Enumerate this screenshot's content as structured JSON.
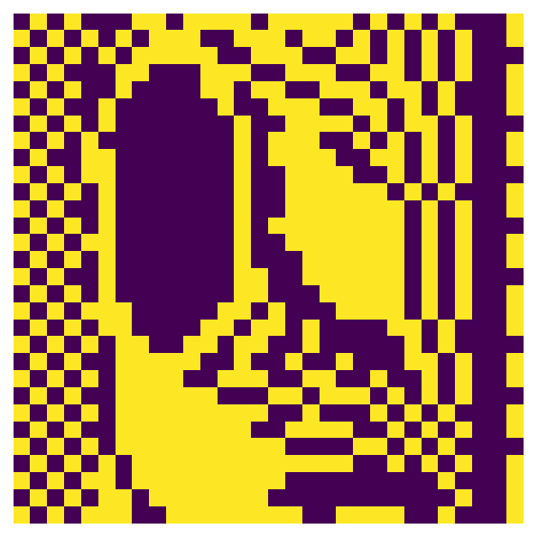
{
  "chart_data": {
    "type": "heatmap",
    "tick_labels": false,
    "grid": false,
    "colors": [
      "#440154",
      "#fde725"
    ],
    "cells": [
      [
        0,
        1,
        0,
        1,
        0,
        0,
        0,
        1,
        1,
        0,
        1,
        1,
        1,
        1,
        0,
        1,
        1,
        1,
        1,
        1,
        0,
        1,
        0,
        1,
        0,
        1,
        0,
        0,
        0,
        1
      ],
      [
        1,
        0,
        1,
        0,
        1,
        0,
        1,
        0,
        1,
        1,
        1,
        0,
        0,
        1,
        1,
        1,
        0,
        1,
        1,
        0,
        1,
        0,
        1,
        0,
        1,
        0,
        1,
        0,
        0,
        1
      ],
      [
        0,
        1,
        0,
        1,
        0,
        1,
        0,
        1,
        1,
        1,
        1,
        1,
        0,
        0,
        1,
        1,
        1,
        0,
        0,
        1,
        1,
        0,
        1,
        0,
        1,
        0,
        1,
        0,
        0,
        0
      ],
      [
        1,
        0,
        1,
        0,
        0,
        0,
        1,
        1,
        0,
        0,
        0,
        1,
        1,
        1,
        0,
        0,
        1,
        1,
        1,
        0,
        0,
        1,
        1,
        0,
        1,
        0,
        1,
        0,
        0,
        1
      ],
      [
        0,
        1,
        0,
        1,
        0,
        0,
        1,
        0,
        0,
        0,
        0,
        1,
        1,
        0,
        1,
        1,
        0,
        0,
        1,
        1,
        1,
        0,
        1,
        1,
        0,
        1,
        0,
        0,
        0,
        1
      ],
      [
        1,
        0,
        1,
        0,
        0,
        1,
        0,
        0,
        0,
        0,
        0,
        0,
        1,
        0,
        0,
        1,
        1,
        1,
        0,
        0,
        1,
        1,
        0,
        1,
        0,
        1,
        0,
        0,
        0,
        1
      ],
      [
        0,
        1,
        0,
        1,
        0,
        1,
        0,
        0,
        0,
        0,
        0,
        0,
        0,
        1,
        0,
        0,
        1,
        1,
        1,
        1,
        0,
        1,
        0,
        1,
        1,
        0,
        1,
        0,
        0,
        0
      ],
      [
        1,
        0,
        1,
        0,
        1,
        0,
        0,
        0,
        0,
        0,
        0,
        0,
        0,
        1,
        0,
        1,
        1,
        1,
        0,
        0,
        1,
        0,
        1,
        0,
        1,
        0,
        1,
        0,
        0,
        1
      ],
      [
        0,
        1,
        0,
        0,
        1,
        1,
        0,
        0,
        0,
        0,
        0,
        0,
        0,
        1,
        0,
        1,
        1,
        1,
        1,
        0,
        0,
        1,
        1,
        0,
        1,
        0,
        1,
        0,
        0,
        1
      ],
      [
        1,
        0,
        1,
        0,
        1,
        1,
        0,
        0,
        0,
        0,
        0,
        0,
        0,
        1,
        0,
        0,
        1,
        1,
        1,
        1,
        0,
        0,
        1,
        0,
        1,
        0,
        1,
        0,
        0,
        0
      ],
      [
        0,
        1,
        0,
        1,
        0,
        1,
        0,
        0,
        0,
        0,
        0,
        0,
        0,
        1,
        0,
        0,
        1,
        1,
        1,
        1,
        1,
        1,
        0,
        1,
        0,
        1,
        0,
        0,
        0,
        1
      ],
      [
        1,
        0,
        1,
        0,
        0,
        1,
        0,
        0,
        0,
        0,
        0,
        0,
        0,
        1,
        0,
        0,
        1,
        1,
        1,
        1,
        1,
        1,
        1,
        0,
        1,
        0,
        1,
        0,
        0,
        1
      ],
      [
        0,
        1,
        0,
        1,
        0,
        1,
        0,
        0,
        0,
        0,
        0,
        0,
        0,
        1,
        0,
        1,
        1,
        1,
        1,
        1,
        1,
        1,
        1,
        0,
        1,
        0,
        1,
        0,
        0,
        0
      ],
      [
        1,
        0,
        1,
        0,
        1,
        1,
        0,
        0,
        0,
        0,
        0,
        0,
        0,
        1,
        0,
        0,
        1,
        1,
        1,
        1,
        1,
        1,
        1,
        0,
        1,
        0,
        1,
        0,
        0,
        1
      ],
      [
        0,
        1,
        0,
        1,
        0,
        1,
        0,
        0,
        0,
        0,
        0,
        0,
        0,
        1,
        0,
        0,
        0,
        1,
        1,
        1,
        1,
        1,
        1,
        0,
        1,
        0,
        1,
        0,
        0,
        1
      ],
      [
        1,
        0,
        1,
        0,
        0,
        1,
        0,
        0,
        0,
        0,
        0,
        0,
        0,
        1,
        1,
        0,
        0,
        1,
        1,
        1,
        1,
        1,
        1,
        0,
        1,
        0,
        1,
        0,
        0,
        0
      ],
      [
        0,
        1,
        0,
        1,
        0,
        1,
        0,
        0,
        0,
        0,
        0,
        0,
        0,
        1,
        1,
        0,
        0,
        0,
        1,
        1,
        1,
        1,
        1,
        0,
        1,
        0,
        1,
        0,
        0,
        1
      ],
      [
        1,
        0,
        1,
        0,
        1,
        1,
        1,
        0,
        0,
        0,
        0,
        0,
        1,
        1,
        0,
        1,
        0,
        0,
        0,
        1,
        1,
        1,
        1,
        0,
        1,
        0,
        1,
        0,
        0,
        1
      ],
      [
        0,
        1,
        0,
        1,
        0,
        1,
        1,
        0,
        0,
        0,
        0,
        1,
        1,
        0,
        1,
        1,
        0,
        1,
        0,
        0,
        0,
        0,
        1,
        1,
        0,
        1,
        0,
        0,
        0,
        1
      ],
      [
        1,
        0,
        1,
        0,
        1,
        0,
        1,
        1,
        0,
        0,
        1,
        1,
        0,
        1,
        1,
        0,
        0,
        1,
        0,
        0,
        0,
        0,
        0,
        1,
        0,
        1,
        0,
        0,
        0,
        0
      ],
      [
        0,
        1,
        0,
        1,
        0,
        0,
        1,
        1,
        1,
        1,
        1,
        0,
        0,
        1,
        0,
        0,
        1,
        0,
        0,
        1,
        0,
        0,
        0,
        1,
        1,
        0,
        1,
        0,
        0,
        1
      ],
      [
        1,
        0,
        1,
        0,
        1,
        0,
        1,
        1,
        1,
        1,
        0,
        0,
        1,
        1,
        1,
        0,
        0,
        1,
        1,
        0,
        0,
        1,
        0,
        0,
        1,
        0,
        1,
        0,
        0,
        1
      ],
      [
        0,
        1,
        0,
        1,
        0,
        0,
        1,
        1,
        1,
        1,
        1,
        1,
        0,
        0,
        0,
        1,
        1,
        0,
        1,
        1,
        1,
        0,
        1,
        0,
        1,
        0,
        1,
        0,
        0,
        0
      ],
      [
        1,
        0,
        1,
        0,
        1,
        0,
        1,
        1,
        1,
        1,
        1,
        1,
        1,
        1,
        1,
        0,
        0,
        1,
        0,
        0,
        0,
        1,
        0,
        1,
        0,
        1,
        0,
        0,
        0,
        1
      ],
      [
        0,
        1,
        0,
        1,
        0,
        0,
        1,
        1,
        1,
        1,
        1,
        1,
        1,
        1,
        0,
        0,
        1,
        1,
        1,
        1,
        0,
        0,
        1,
        0,
        1,
        0,
        1,
        0,
        0,
        1
      ],
      [
        1,
        0,
        1,
        0,
        1,
        0,
        1,
        1,
        1,
        1,
        1,
        1,
        1,
        1,
        1,
        1,
        0,
        0,
        0,
        0,
        1,
        1,
        0,
        1,
        0,
        1,
        0,
        0,
        0,
        0
      ],
      [
        0,
        1,
        0,
        1,
        0,
        1,
        0,
        1,
        1,
        1,
        1,
        1,
        1,
        1,
        1,
        1,
        1,
        1,
        1,
        1,
        0,
        0,
        1,
        0,
        1,
        0,
        1,
        0,
        0,
        1
      ],
      [
        1,
        0,
        1,
        0,
        1,
        1,
        0,
        1,
        1,
        1,
        1,
        1,
        1,
        1,
        1,
        1,
        0,
        0,
        0,
        0,
        0,
        0,
        0,
        0,
        0,
        1,
        0,
        0,
        0,
        1
      ],
      [
        0,
        1,
        0,
        1,
        0,
        1,
        1,
        0,
        1,
        1,
        1,
        1,
        1,
        1,
        1,
        0,
        0,
        0,
        0,
        0,
        0,
        0,
        0,
        0,
        0,
        0,
        1,
        0,
        0,
        1
      ],
      [
        1,
        0,
        1,
        0,
        1,
        1,
        1,
        0,
        0,
        1,
        1,
        1,
        1,
        1,
        1,
        1,
        1,
        0,
        0,
        1,
        1,
        1,
        1,
        0,
        0,
        1,
        0,
        0,
        0,
        1
      ]
    ]
  }
}
